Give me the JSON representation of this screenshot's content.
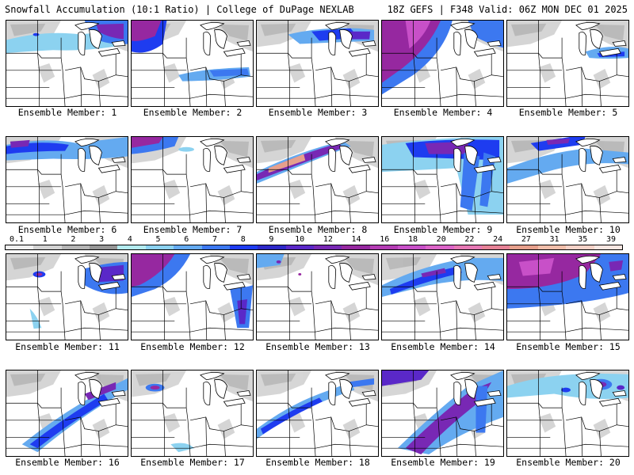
{
  "header": {
    "left": "Snowfall Accumulation (10:1 Ratio) | College of DuPage NEXLAB",
    "right": "18Z GEFS | F348 Valid: 06Z MON DEC 01 2025"
  },
  "colorbar": {
    "ticks": [
      "0.1",
      "1",
      "2",
      "3",
      "4",
      "5",
      "6",
      "7",
      "8",
      "9",
      "10",
      "12",
      "14",
      "16",
      "18",
      "20",
      "22",
      "24",
      "27",
      "31",
      "35",
      "39"
    ],
    "colors": [
      "#f0f0f0",
      "#d2d2d2",
      "#b4b4b4",
      "#969696",
      "#b4ecf0",
      "#8cd2f0",
      "#64aaf0",
      "#3c78f0",
      "#1e3cf0",
      "#2d28c8",
      "#5a28c8",
      "#7828b4",
      "#9628a0",
      "#b43cb4",
      "#c850c8",
      "#dc64c8",
      "#e678b4",
      "#e68296",
      "#e6a08c",
      "#f0beaa",
      "#f5d2c8",
      "#f8e6e1"
    ]
  },
  "members": [
    {
      "label": "Ensemble Member: 1"
    },
    {
      "label": "Ensemble Member: 2"
    },
    {
      "label": "Ensemble Member: 3"
    },
    {
      "label": "Ensemble Member: 4"
    },
    {
      "label": "Ensemble Member: 5"
    },
    {
      "label": "Ensemble Member: 6"
    },
    {
      "label": "Ensemble Member: 7"
    },
    {
      "label": "Ensemble Member: 8"
    },
    {
      "label": "Ensemble Member: 9"
    },
    {
      "label": "Ensemble Member: 10"
    },
    {
      "label": "Ensemble Member: 11"
    },
    {
      "label": "Ensemble Member: 12"
    },
    {
      "label": "Ensemble Member: 13"
    },
    {
      "label": "Ensemble Member: 14"
    },
    {
      "label": "Ensemble Member: 15"
    },
    {
      "label": "Ensemble Member: 16"
    },
    {
      "label": "Ensemble Member: 17"
    },
    {
      "label": "Ensemble Member: 18"
    },
    {
      "label": "Ensemble Member: 19"
    },
    {
      "label": "Ensemble Member: 20"
    }
  ]
}
